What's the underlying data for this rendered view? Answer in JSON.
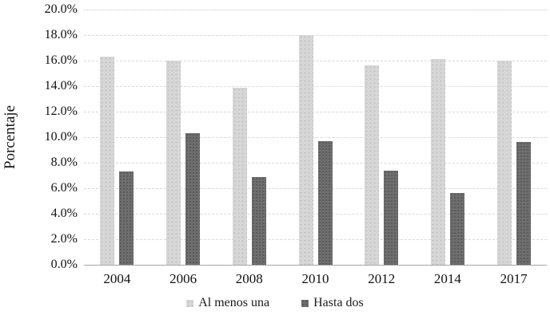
{
  "chart_data": {
    "type": "bar",
    "title": "",
    "xlabel": "",
    "ylabel": "Porcentaje",
    "categories": [
      "2004",
      "2006",
      "2008",
      "2010",
      "2012",
      "2014",
      "2017"
    ],
    "series": [
      {
        "name": "Al menos una",
        "color": "#d7d7d7",
        "values": [
          16.3,
          16.0,
          13.9,
          18.0,
          15.6,
          16.1,
          16.0
        ]
      },
      {
        "name": "Hasta dos",
        "color": "#6e6e6e",
        "values": [
          7.3,
          10.3,
          6.9,
          9.7,
          7.4,
          5.6,
          9.6
        ]
      }
    ],
    "ylim": [
      0,
      20
    ],
    "y_tick_step": 2,
    "y_tick_labels": [
      "20.0%",
      "18.0%",
      "16.0%",
      "14.0%",
      "12.0%",
      "10.0%",
      "8.0%",
      "6.0%",
      "4.0%",
      "2.0%",
      "0.0%"
    ],
    "grid": true,
    "gridline_style": "dashed-light-gray, top line dotted",
    "legend_position": "bottom",
    "colors": {
      "series_light": "#d7d7d7",
      "series_dark": "#6e6e6e",
      "gridline": "#d9d9d9",
      "axis_line": "#a6a6a6",
      "text": "#111111",
      "background": "#ffffff"
    }
  }
}
